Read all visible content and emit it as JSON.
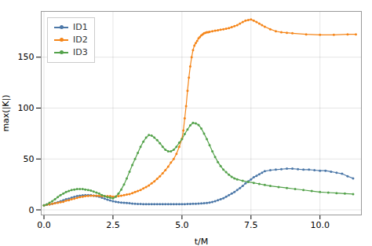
{
  "chart_data": {
    "type": "line",
    "xlabel": "t/M",
    "ylabel": "max(|K|)",
    "xlim": [
      -0.1,
      11.5
    ],
    "ylim": [
      -5,
      195
    ],
    "xticks": [
      {
        "value": 0,
        "label": "0.0"
      },
      2.5,
      {
        "value": 5,
        "label": "5.0"
      },
      7.5,
      {
        "value": 10,
        "label": "10.0"
      }
    ],
    "yticks": [
      0,
      50,
      100,
      150
    ],
    "grid": true,
    "legend": "upper left",
    "marker": "dot",
    "series": [
      {
        "name": "ID1",
        "color": "#4c78a8",
        "x": [
          0.0,
          0.1,
          0.2,
          0.3,
          0.4,
          0.5,
          0.6,
          0.7,
          0.8,
          0.9,
          1.0,
          1.1,
          1.2,
          1.3,
          1.4,
          1.5,
          1.6,
          1.7,
          1.8,
          1.9,
          2.0,
          2.1,
          2.2,
          2.3,
          2.4,
          2.5,
          2.6,
          2.7,
          2.8,
          2.9,
          3.0,
          3.1,
          3.2,
          3.3,
          3.4,
          3.5,
          3.6,
          3.7,
          3.8,
          3.9,
          4.0,
          4.1,
          4.2,
          4.3,
          4.4,
          4.5,
          4.6,
          4.7,
          4.8,
          4.9,
          5.0,
          5.1,
          5.2,
          5.3,
          5.4,
          5.5,
          5.6,
          5.7,
          5.8,
          5.9,
          6.0,
          6.1,
          6.2,
          6.3,
          6.4,
          6.5,
          6.6,
          6.7,
          6.8,
          6.9,
          7.0,
          7.1,
          7.2,
          7.3,
          7.4,
          7.5,
          7.6,
          7.7,
          7.8,
          7.9,
          8.0,
          8.2,
          8.4,
          8.6,
          8.8,
          9.0,
          9.2,
          9.4,
          9.6,
          9.8,
          10.0,
          10.2,
          10.4,
          10.6,
          10.8,
          11.0,
          11.2
        ],
        "values": [
          4.5,
          5.0,
          5.5,
          6.0,
          6.8,
          7.5,
          8.5,
          9.5,
          10.5,
          11.0,
          12.0,
          12.8,
          13.5,
          14.0,
          14.3,
          14.5,
          14.5,
          14.5,
          14.0,
          13.5,
          13.0,
          12.0,
          11.0,
          10.0,
          9.2,
          8.5,
          8.0,
          7.5,
          7.2,
          7.0,
          6.8,
          6.5,
          6.2,
          6.0,
          5.8,
          5.8,
          5.7,
          5.7,
          5.7,
          5.7,
          5.7,
          5.7,
          5.7,
          5.7,
          5.7,
          5.7,
          5.7,
          5.7,
          5.7,
          5.7,
          5.7,
          5.7,
          5.8,
          5.9,
          6.0,
          6.0,
          6.2,
          6.3,
          6.5,
          6.8,
          7.2,
          7.8,
          8.5,
          9.5,
          10.5,
          11.5,
          13.0,
          14.5,
          16.0,
          17.5,
          19.5,
          21.5,
          23.5,
          26.0,
          28.0,
          30.0,
          32.0,
          33.5,
          35.0,
          36.5,
          38.0,
          39.0,
          39.5,
          40.0,
          40.5,
          40.5,
          40.0,
          39.5,
          39.5,
          39.0,
          38.5,
          38.5,
          37.5,
          36.5,
          35.5,
          33.0,
          31.0
        ]
      },
      {
        "name": "ID2",
        "color": "#f58518",
        "x": [
          0.0,
          0.1,
          0.2,
          0.3,
          0.4,
          0.5,
          0.6,
          0.7,
          0.8,
          0.9,
          1.0,
          1.1,
          1.2,
          1.3,
          1.4,
          1.5,
          1.6,
          1.7,
          1.8,
          1.9,
          2.0,
          2.1,
          2.2,
          2.3,
          2.4,
          2.5,
          2.6,
          2.7,
          2.8,
          2.9,
          3.0,
          3.1,
          3.2,
          3.3,
          3.4,
          3.5,
          3.6,
          3.7,
          3.8,
          3.9,
          4.0,
          4.1,
          4.2,
          4.3,
          4.4,
          4.5,
          4.6,
          4.7,
          4.8,
          4.9,
          5.0,
          5.05,
          5.1,
          5.15,
          5.2,
          5.25,
          5.3,
          5.35,
          5.4,
          5.45,
          5.5,
          5.55,
          5.6,
          5.65,
          5.7,
          5.75,
          5.8,
          5.85,
          5.9,
          5.95,
          6.0,
          6.1,
          6.2,
          6.3,
          6.4,
          6.5,
          6.6,
          6.7,
          6.8,
          6.9,
          7.0,
          7.1,
          7.2,
          7.3,
          7.4,
          7.5,
          7.6,
          7.7,
          7.8,
          7.9,
          8.0,
          8.2,
          8.4,
          8.6,
          8.8,
          9.0,
          9.5,
          10.0,
          10.5,
          11.0,
          11.3
        ],
        "values": [
          4.5,
          5.0,
          5.5,
          6.0,
          6.5,
          7.0,
          7.5,
          8.0,
          9.0,
          9.5,
          10.5,
          11.0,
          11.8,
          12.5,
          13.0,
          13.5,
          13.8,
          14.0,
          14.0,
          14.0,
          13.8,
          13.5,
          13.5,
          13.5,
          13.5,
          13.0,
          13.2,
          13.5,
          14.0,
          14.5,
          15.0,
          15.5,
          16.5,
          17.5,
          18.5,
          19.5,
          21.0,
          22.5,
          24.0,
          26.0,
          28.0,
          30.5,
          33.0,
          36.0,
          39.0,
          42.5,
          46.5,
          50.0,
          55.0,
          62.0,
          70.0,
          78.0,
          90.0,
          102.0,
          117.0,
          130.0,
          141.0,
          150.0,
          157.0,
          161.5,
          164.0,
          166.0,
          168.5,
          170.0,
          171.5,
          172.5,
          173.5,
          174.0,
          174.5,
          174.5,
          175.0,
          175.5,
          176.0,
          176.5,
          177.0,
          177.5,
          178.0,
          178.5,
          179.5,
          180.5,
          181.5,
          183.0,
          184.5,
          186.0,
          186.5,
          187.0,
          186.0,
          184.5,
          183.0,
          181.5,
          180.0,
          177.5,
          175.5,
          174.5,
          174.0,
          173.5,
          172.5,
          172.0,
          172.0,
          172.5,
          172.5
        ]
      },
      {
        "name": "ID3",
        "color": "#54a24b",
        "x": [
          0.0,
          0.1,
          0.2,
          0.3,
          0.4,
          0.5,
          0.6,
          0.7,
          0.8,
          0.9,
          1.0,
          1.1,
          1.2,
          1.3,
          1.4,
          1.5,
          1.6,
          1.7,
          1.8,
          1.9,
          2.0,
          2.1,
          2.2,
          2.3,
          2.4,
          2.5,
          2.6,
          2.7,
          2.8,
          2.9,
          3.0,
          3.1,
          3.2,
          3.3,
          3.4,
          3.5,
          3.6,
          3.7,
          3.8,
          3.9,
          4.0,
          4.1,
          4.2,
          4.3,
          4.4,
          4.5,
          4.6,
          4.7,
          4.8,
          4.9,
          5.0,
          5.1,
          5.2,
          5.3,
          5.4,
          5.5,
          5.6,
          5.7,
          5.8,
          5.9,
          6.0,
          6.1,
          6.2,
          6.3,
          6.4,
          6.5,
          6.6,
          6.7,
          6.8,
          6.9,
          7.0,
          7.2,
          7.4,
          7.6,
          7.8,
          8.0,
          8.2,
          8.5,
          8.8,
          9.1,
          9.4,
          9.7,
          10.0,
          10.3,
          10.6,
          10.9,
          11.2
        ],
        "values": [
          4.5,
          5.5,
          7.0,
          8.5,
          10.5,
          12.5,
          14.5,
          16.0,
          17.5,
          18.5,
          19.5,
          20.0,
          20.5,
          20.5,
          20.5,
          20.0,
          19.5,
          19.0,
          18.0,
          17.0,
          16.0,
          14.5,
          13.5,
          12.5,
          12.0,
          11.5,
          13.0,
          16.0,
          20.0,
          25.0,
          31.0,
          37.5,
          44.0,
          50.0,
          56.0,
          62.0,
          67.0,
          71.0,
          73.5,
          73.0,
          71.0,
          68.5,
          65.5,
          62.0,
          59.0,
          57.5,
          57.5,
          59.0,
          62.0,
          66.0,
          69.5,
          74.5,
          79.0,
          83.0,
          85.5,
          85.0,
          83.5,
          80.0,
          75.0,
          69.5,
          63.5,
          57.5,
          52.0,
          47.0,
          43.0,
          39.5,
          37.0,
          34.5,
          32.5,
          31.0,
          30.0,
          28.5,
          27.5,
          26.5,
          25.5,
          24.5,
          23.5,
          22.5,
          21.5,
          20.5,
          19.5,
          18.5,
          17.5,
          17.0,
          16.5,
          16.0,
          15.5
        ]
      }
    ]
  }
}
